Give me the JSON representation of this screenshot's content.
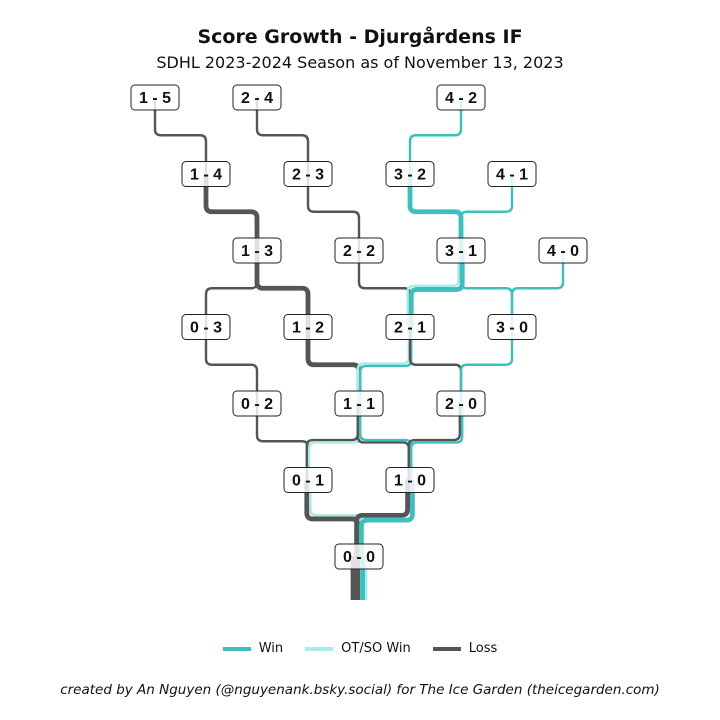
{
  "title": "Score Growth - Djurgårdens IF",
  "subtitle": "SDHL 2023-2024 Season as of November 13, 2023",
  "caption": "created by An Nguyen (@nguyenank.bsky.social) for The Ice Garden (theicegarden.com)",
  "colors": {
    "Win": "#3bbfbf",
    "OT/SO Win": "#a9ebe7",
    "Loss": "#555555"
  },
  "legend": [
    {
      "label": "Win",
      "key": "Win"
    },
    {
      "label": "OT/SO Win",
      "key": "OT/SO Win"
    },
    {
      "label": "Loss",
      "key": "Loss"
    }
  ],
  "nodes": [
    "0 - 0",
    "0 - 1",
    "1 - 0",
    "0 - 2",
    "1 - 1",
    "2 - 0",
    "0 - 3",
    "1 - 2",
    "2 - 1",
    "3 - 0",
    "1 - 3",
    "2 - 2",
    "3 - 1",
    "4 - 0",
    "1 - 4",
    "2 - 3",
    "3 - 2",
    "4 - 1",
    "1 - 5",
    "2 - 4",
    "4 - 2"
  ],
  "edges": [
    {
      "from": "0 - 0",
      "to": "0 - 1",
      "result": "Loss",
      "count": 2
    },
    {
      "from": "0 - 0",
      "to": "0 - 1",
      "result": "OT/SO Win",
      "count": 1
    },
    {
      "from": "0 - 0",
      "to": "1 - 0",
      "result": "Loss",
      "count": 2
    },
    {
      "from": "0 - 0",
      "to": "1 - 0",
      "result": "Win",
      "count": 2
    },
    {
      "from": "0 - 1",
      "to": "0 - 2",
      "result": "Loss",
      "count": 1
    },
    {
      "from": "0 - 1",
      "to": "1 - 1",
      "result": "Loss",
      "count": 1
    },
    {
      "from": "0 - 1",
      "to": "1 - 1",
      "result": "OT/SO Win",
      "count": 1
    },
    {
      "from": "1 - 0",
      "to": "1 - 1",
      "result": "Loss",
      "count": 1
    },
    {
      "from": "1 - 0",
      "to": "1 - 1",
      "result": "Win",
      "count": 1
    },
    {
      "from": "1 - 0",
      "to": "2 - 0",
      "result": "Loss",
      "count": 1
    },
    {
      "from": "1 - 0",
      "to": "2 - 0",
      "result": "Win",
      "count": 1
    },
    {
      "from": "0 - 2",
      "to": "0 - 3",
      "result": "Loss",
      "count": 1
    },
    {
      "from": "1 - 1",
      "to": "1 - 2",
      "result": "Loss",
      "count": 2
    },
    {
      "from": "1 - 1",
      "to": "2 - 1",
      "result": "OT/SO Win",
      "count": 1
    },
    {
      "from": "1 - 1",
      "to": "2 - 1",
      "result": "Win",
      "count": 1
    },
    {
      "from": "2 - 0",
      "to": "2 - 1",
      "result": "Loss",
      "count": 1
    },
    {
      "from": "2 - 0",
      "to": "3 - 0",
      "result": "Win",
      "count": 1
    },
    {
      "from": "0 - 3",
      "to": "1 - 3",
      "result": "Loss",
      "count": 1
    },
    {
      "from": "1 - 2",
      "to": "1 - 3",
      "result": "Loss",
      "count": 2
    },
    {
      "from": "2 - 1",
      "to": "2 - 2",
      "result": "Loss",
      "count": 1
    },
    {
      "from": "2 - 1",
      "to": "3 - 1",
      "result": "Win",
      "count": 2
    },
    {
      "from": "2 - 1",
      "to": "3 - 1",
      "result": "OT/SO Win",
      "count": 1
    },
    {
      "from": "3 - 0",
      "to": "3 - 1",
      "result": "Win",
      "count": 1
    },
    {
      "from": "3 - 0",
      "to": "4 - 0",
      "result": "Win",
      "count": 1
    },
    {
      "from": "1 - 3",
      "to": "1 - 4",
      "result": "Loss",
      "count": 2
    },
    {
      "from": "2 - 2",
      "to": "2 - 3",
      "result": "Loss",
      "count": 1
    },
    {
      "from": "3 - 1",
      "to": "3 - 2",
      "result": "Win",
      "count": 2
    },
    {
      "from": "3 - 1",
      "to": "4 - 1",
      "result": "Win",
      "count": 1
    },
    {
      "from": "1 - 4",
      "to": "1 - 5",
      "result": "Loss",
      "count": 1
    },
    {
      "from": "2 - 3",
      "to": "2 - 4",
      "result": "Loss",
      "count": 1
    },
    {
      "from": "3 - 2",
      "to": "4 - 2",
      "result": "Win",
      "count": 1
    }
  ],
  "trunk": [
    {
      "result": "Loss",
      "count": 4
    },
    {
      "result": "Win",
      "count": 2
    },
    {
      "result": "OT/SO Win",
      "count": 1
    }
  ]
}
